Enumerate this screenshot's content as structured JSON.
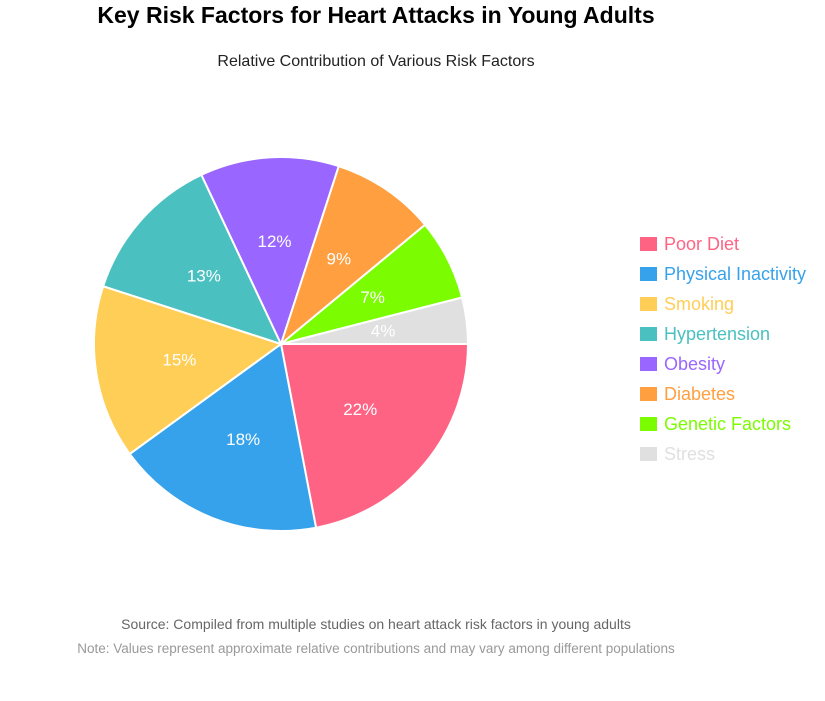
{
  "header": {
    "title": "Key Risk Factors for Heart Attacks in Young Adults",
    "subtitle": "Relative Contribution of Various Risk Factors"
  },
  "footer": {
    "source": "Source: Compiled from multiple studies on heart attack risk factors in young adults",
    "note": "Note: Values represent approximate relative contributions and may vary among different populations"
  },
  "chart_data": {
    "type": "pie",
    "title": "Key Risk Factors for Heart Attacks in Young Adults",
    "subtitle": "Relative Contribution of Various Risk Factors",
    "legend_position": "right",
    "slices": [
      {
        "label": "Poor Diet",
        "value": 22,
        "display": "22%",
        "color": "#FF6384"
      },
      {
        "label": "Physical Inactivity",
        "value": 18,
        "display": "18%",
        "color": "#36A2EB"
      },
      {
        "label": "Smoking",
        "value": 15,
        "display": "15%",
        "color": "#FFCE56"
      },
      {
        "label": "Hypertension",
        "value": 13,
        "display": "13%",
        "color": "#4BC0C0"
      },
      {
        "label": "Obesity",
        "value": 12,
        "display": "12%",
        "color": "#9966FF"
      },
      {
        "label": "Diabetes",
        "value": 9,
        "display": "9%",
        "color": "#FF9F40"
      },
      {
        "label": "Genetic Factors",
        "value": 7,
        "display": "7%",
        "color": "#7CFC00"
      },
      {
        "label": "Stress",
        "value": 4,
        "display": "4%",
        "color": "#E0E0E0"
      }
    ]
  }
}
